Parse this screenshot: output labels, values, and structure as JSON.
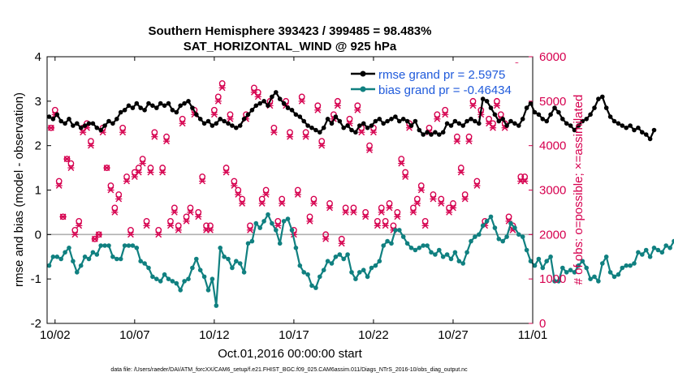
{
  "chart_data": {
    "type": "line",
    "title": "Southern Hemisphere 393423 / 399485 = 98.483%",
    "subtitle": "SAT_HORIZONTAL_WIND @ 925 hPa",
    "xlabel": "Oct.01,2016 00:00:00 start",
    "ylabel_left": "rmse and bias (model - observation)",
    "ylabel_right": "# of obs: o=possible; ×=assimilated",
    "footnote": "data file: /Users/raeder/DAI/ATM_forcXX/CAM6_setup/f.e21.FHIST_BGC.f09_025.CAM6assim.011/Diags_NTrS_2016-10/obs_diag_output.nc",
    "xlim": [
      1.5,
      32.0
    ],
    "ylim_left": [
      -2,
      4
    ],
    "ylim_right": [
      0,
      6000
    ],
    "x_ticks": [
      2,
      7,
      12,
      17,
      22,
      27,
      32
    ],
    "x_tick_labels": [
      "10/02",
      "10/07",
      "10/12",
      "10/17",
      "10/22",
      "10/27",
      "11/01"
    ],
    "y_ticks_left": [
      -2,
      -1,
      0,
      1,
      2,
      3,
      4
    ],
    "y_tick_labels_left": [
      "-2",
      "-1",
      "0",
      "1",
      "2",
      "3",
      "4"
    ],
    "y_ticks_right": [
      0,
      1000,
      2000,
      3000,
      4000,
      5000,
      6000
    ],
    "y_tick_labels_right": [
      "0",
      "1000",
      "2000",
      "3000",
      "4000",
      "5000",
      "6000"
    ],
    "x_start": 1.625,
    "x_step": 0.25,
    "legend_position": "top-right",
    "colors": {
      "rmse": "#000000",
      "bias": "#108080",
      "obs": "#d6004f",
      "zero_line": "#b0b0b0",
      "legend_text": "#1f5adb"
    },
    "series": [
      {
        "name": "rmse grand pr = 2.5975",
        "axis": "left",
        "values": [
          2.65,
          2.6,
          2.7,
          2.55,
          2.5,
          2.6,
          2.45,
          2.5,
          2.4,
          2.45,
          2.5,
          2.5,
          2.4,
          2.35,
          2.45,
          2.55,
          2.5,
          2.6,
          2.75,
          2.8,
          2.9,
          2.85,
          2.95,
          2.85,
          2.8,
          2.95,
          2.9,
          2.85,
          2.95,
          2.9,
          2.95,
          2.8,
          2.75,
          2.9,
          2.95,
          3.0,
          2.85,
          2.7,
          2.6,
          2.5,
          2.55,
          2.45,
          2.5,
          2.6,
          2.55,
          2.5,
          2.45,
          2.4,
          2.45,
          2.6,
          2.7,
          2.8,
          2.9,
          2.95,
          3.0,
          2.9,
          3.1,
          3.2,
          3.05,
          2.95,
          2.85,
          2.8,
          2.7,
          2.65,
          2.55,
          2.45,
          2.4,
          2.35,
          2.3,
          2.4,
          2.6,
          2.5,
          2.65,
          2.55,
          2.4,
          2.45,
          2.35,
          2.3,
          2.45,
          2.5,
          2.4,
          2.45,
          2.55,
          2.6,
          2.5,
          2.55,
          2.6,
          2.65,
          2.55,
          2.6,
          2.55,
          2.45,
          2.55,
          2.35,
          2.25,
          2.3,
          2.25,
          2.3,
          2.25,
          2.3,
          2.5,
          2.45,
          2.55,
          2.5,
          2.45,
          2.55,
          2.6,
          2.55,
          2.5,
          3.05,
          3.0,
          2.85,
          2.7,
          2.55,
          2.6,
          2.45,
          2.55,
          2.5,
          2.45,
          2.6,
          2.85,
          2.95,
          2.75,
          2.7,
          2.6,
          2.55,
          2.7,
          2.85,
          2.75,
          2.6,
          2.5,
          2.45,
          2.35,
          2.45,
          2.55,
          2.6,
          2.7,
          2.85,
          3.05,
          3.1,
          2.85,
          2.65,
          2.55,
          2.5,
          2.45,
          2.4,
          2.45,
          2.35,
          2.4,
          2.3,
          2.25,
          2.15,
          2.35
        ]
      },
      {
        "name": "bias grand pr = -0.46434",
        "axis": "left",
        "values": [
          -0.7,
          -0.5,
          -0.5,
          -0.55,
          -0.4,
          -0.3,
          -0.6,
          -0.85,
          -0.7,
          -0.5,
          -0.55,
          -0.4,
          -0.45,
          -0.25,
          -0.25,
          -0.25,
          -0.5,
          -0.55,
          -0.55,
          -0.25,
          -0.25,
          -0.25,
          -0.3,
          -0.6,
          -0.65,
          -0.75,
          -0.95,
          -1.0,
          -1.05,
          -0.9,
          -1.0,
          -1.05,
          -1.1,
          -1.25,
          -1.05,
          -1.0,
          -0.75,
          -0.55,
          -0.8,
          -0.95,
          -1.25,
          -1.0,
          -1.6,
          -0.3,
          -0.5,
          -0.55,
          -0.75,
          -0.6,
          -0.65,
          -0.85,
          -0.2,
          -0.15,
          0.25,
          0.15,
          0.3,
          0.45,
          0.25,
          0.1,
          -0.2,
          0.3,
          0.35,
          0.1,
          -0.3,
          -0.7,
          -0.85,
          -0.9,
          -1.15,
          -1.2,
          -0.95,
          -0.8,
          -0.6,
          -0.65,
          -0.5,
          -0.45,
          -0.55,
          -0.45,
          -0.85,
          -1.0,
          -0.85,
          -0.8,
          -0.95,
          -0.75,
          -0.7,
          -0.6,
          -0.25,
          -0.15,
          -0.2,
          0.1,
          0.1,
          -0.05,
          -0.2,
          -0.3,
          -0.35,
          -0.3,
          -0.25,
          -0.25,
          -0.4,
          -0.45,
          -0.35,
          -0.5,
          -0.45,
          -0.55,
          -0.4,
          -0.6,
          -0.65,
          -0.4,
          -0.15,
          -0.05,
          0.0,
          0.2,
          0.3,
          0.4,
          0.15,
          -0.1,
          -0.15,
          -0.05,
          0.25,
          0.15,
          0.0,
          -0.05,
          -0.35,
          -0.6,
          -0.7,
          -0.55,
          -0.75,
          -0.6,
          -0.5,
          -1.05,
          -1.05,
          -0.75,
          -0.85,
          -0.8,
          -0.85,
          -0.7,
          -0.6,
          -0.75,
          -1.0,
          -0.95,
          -1.05,
          -0.65,
          -0.5,
          -0.85,
          -0.95,
          -0.9,
          -0.75,
          -0.7,
          -0.7,
          -0.65,
          -0.4,
          -0.45,
          -0.35,
          -0.5,
          -0.3,
          -0.35,
          -0.4,
          -0.25,
          -0.3,
          -0.15,
          -0.2,
          -0.1,
          0.1,
          -0.1
        ]
      }
    ],
    "obs_possible": [
      {
        "x": 1.75,
        "y": 4400
      },
      {
        "x": 2.0,
        "y": 4800
      },
      {
        "x": 2.25,
        "y": 3200
      },
      {
        "x": 2.5,
        "y": 2400
      },
      {
        "x": 2.75,
        "y": 3700
      },
      {
        "x": 3.0,
        "y": 3600
      },
      {
        "x": 3.25,
        "y": 2100
      },
      {
        "x": 3.5,
        "y": 2300
      },
      {
        "x": 3.75,
        "y": 4400
      },
      {
        "x": 4.0,
        "y": 4500
      },
      {
        "x": 4.25,
        "y": 4100
      },
      {
        "x": 4.5,
        "y": 1900
      },
      {
        "x": 4.75,
        "y": 2000
      },
      {
        "x": 5.0,
        "y": 4400
      },
      {
        "x": 5.25,
        "y": 3500
      },
      {
        "x": 5.5,
        "y": 3100
      },
      {
        "x": 5.75,
        "y": 2600
      },
      {
        "x": 6.0,
        "y": 2900
      },
      {
        "x": 6.25,
        "y": 4400
      },
      {
        "x": 6.5,
        "y": 3300
      },
      {
        "x": 6.75,
        "y": 2100
      },
      {
        "x": 7.0,
        "y": 3400
      },
      {
        "x": 7.25,
        "y": 3500
      },
      {
        "x": 7.5,
        "y": 3700
      },
      {
        "x": 7.75,
        "y": 2300
      },
      {
        "x": 8.0,
        "y": 3500
      },
      {
        "x": 8.25,
        "y": 4300
      },
      {
        "x": 8.5,
        "y": 2100
      },
      {
        "x": 8.75,
        "y": 3500
      },
      {
        "x": 9.0,
        "y": 4200
      },
      {
        "x": 9.25,
        "y": 2300
      },
      {
        "x": 9.5,
        "y": 2600
      },
      {
        "x": 9.75,
        "y": 2200
      },
      {
        "x": 10.0,
        "y": 4600
      },
      {
        "x": 10.25,
        "y": 2400
      },
      {
        "x": 10.5,
        "y": 2600
      },
      {
        "x": 10.75,
        "y": 4800
      },
      {
        "x": 11.0,
        "y": 2500
      },
      {
        "x": 11.25,
        "y": 3300
      },
      {
        "x": 11.5,
        "y": 2200
      },
      {
        "x": 11.75,
        "y": 2200
      },
      {
        "x": 12.0,
        "y": 4800
      },
      {
        "x": 12.25,
        "y": 5100
      },
      {
        "x": 12.5,
        "y": 5400
      },
      {
        "x": 12.75,
        "y": 3500
      },
      {
        "x": 13.0,
        "y": 4700
      },
      {
        "x": 13.25,
        "y": 3200
      },
      {
        "x": 13.5,
        "y": 3000
      },
      {
        "x": 13.75,
        "y": 2800
      },
      {
        "x": 14.0,
        "y": 4700
      },
      {
        "x": 14.25,
        "y": 2200
      },
      {
        "x": 14.5,
        "y": 5300
      },
      {
        "x": 14.75,
        "y": 5200
      },
      {
        "x": 15.0,
        "y": 2800
      },
      {
        "x": 15.25,
        "y": 3000
      },
      {
        "x": 15.5,
        "y": 5000
      },
      {
        "x": 15.75,
        "y": 4400
      },
      {
        "x": 16.0,
        "y": 2300
      },
      {
        "x": 16.25,
        "y": 2800
      },
      {
        "x": 16.5,
        "y": 5000
      },
      {
        "x": 16.75,
        "y": 4300
      },
      {
        "x": 17.0,
        "y": 2100
      },
      {
        "x": 17.25,
        "y": 3000
      },
      {
        "x": 17.5,
        "y": 5100
      },
      {
        "x": 17.75,
        "y": 4300
      },
      {
        "x": 18.0,
        "y": 2400
      },
      {
        "x": 18.25,
        "y": 2800
      },
      {
        "x": 18.5,
        "y": 4900
      },
      {
        "x": 18.75,
        "y": 4100
      },
      {
        "x": 19.0,
        "y": 2000
      },
      {
        "x": 19.25,
        "y": 2700
      },
      {
        "x": 19.5,
        "y": 4700
      },
      {
        "x": 19.75,
        "y": 5000
      },
      {
        "x": 20.0,
        "y": 1900
      },
      {
        "x": 20.25,
        "y": 2600
      },
      {
        "x": 20.5,
        "y": 4600
      },
      {
        "x": 20.75,
        "y": 2600
      },
      {
        "x": 21.0,
        "y": 4900
      },
      {
        "x": 21.25,
        "y": 4400
      },
      {
        "x": 21.5,
        "y": 2500
      },
      {
        "x": 21.75,
        "y": 4000
      },
      {
        "x": 22.0,
        "y": 4400
      },
      {
        "x": 22.25,
        "y": 2300
      },
      {
        "x": 22.5,
        "y": 2600
      },
      {
        "x": 22.75,
        "y": 2300
      },
      {
        "x": 23.0,
        "y": 2700
      },
      {
        "x": 23.25,
        "y": 2200
      },
      {
        "x": 23.5,
        "y": 2500
      },
      {
        "x": 23.75,
        "y": 3700
      },
      {
        "x": 24.0,
        "y": 3400
      },
      {
        "x": 24.25,
        "y": 4500
      },
      {
        "x": 24.5,
        "y": 2600
      },
      {
        "x": 24.75,
        "y": 2800
      },
      {
        "x": 25.0,
        "y": 3100
      },
      {
        "x": 25.25,
        "y": 2300
      },
      {
        "x": 25.5,
        "y": 4400
      },
      {
        "x": 25.75,
        "y": 2900
      },
      {
        "x": 26.0,
        "y": 4700
      },
      {
        "x": 26.25,
        "y": 2800
      },
      {
        "x": 26.5,
        "y": 4800
      },
      {
        "x": 26.75,
        "y": 2600
      },
      {
        "x": 27.0,
        "y": 2700
      },
      {
        "x": 27.25,
        "y": 4200
      },
      {
        "x": 27.5,
        "y": 3500
      },
      {
        "x": 27.75,
        "y": 2900
      },
      {
        "x": 28.0,
        "y": 4200
      },
      {
        "x": 28.25,
        "y": 5000
      },
      {
        "x": 28.5,
        "y": 3200
      },
      {
        "x": 28.75,
        "y": 4800
      },
      {
        "x": 29.0,
        "y": 2300
      },
      {
        "x": 29.25,
        "y": 4600
      },
      {
        "x": 29.5,
        "y": 4500
      },
      {
        "x": 29.75,
        "y": 5000
      },
      {
        "x": 30.0,
        "y": 4700
      },
      {
        "x": 30.25,
        "y": 4500
      },
      {
        "x": 30.5,
        "y": 2400
      },
      {
        "x": 30.75,
        "y": 2200
      },
      {
        "x": 31.0,
        "y": 5800
      },
      {
        "x": 31.25,
        "y": 3300
      },
      {
        "x": 31.5,
        "y": 3300
      }
    ],
    "obs_assimilated": [
      {
        "x": 1.75,
        "y": 4400
      },
      {
        "x": 2.0,
        "y": 4700
      },
      {
        "x": 2.25,
        "y": 3100
      },
      {
        "x": 2.5,
        "y": 2400
      },
      {
        "x": 2.75,
        "y": 3700
      },
      {
        "x": 3.0,
        "y": 3500
      },
      {
        "x": 3.25,
        "y": 2000
      },
      {
        "x": 3.5,
        "y": 2200
      },
      {
        "x": 3.75,
        "y": 4300
      },
      {
        "x": 4.0,
        "y": 4400
      },
      {
        "x": 4.25,
        "y": 4000
      },
      {
        "x": 4.5,
        "y": 1900
      },
      {
        "x": 4.75,
        "y": 2000
      },
      {
        "x": 5.0,
        "y": 4300
      },
      {
        "x": 5.25,
        "y": 3500
      },
      {
        "x": 5.5,
        "y": 3000
      },
      {
        "x": 5.75,
        "y": 2500
      },
      {
        "x": 6.0,
        "y": 2800
      },
      {
        "x": 6.25,
        "y": 4300
      },
      {
        "x": 6.5,
        "y": 3200
      },
      {
        "x": 6.75,
        "y": 2000
      },
      {
        "x": 7.0,
        "y": 3300
      },
      {
        "x": 7.25,
        "y": 3400
      },
      {
        "x": 7.5,
        "y": 3600
      },
      {
        "x": 7.75,
        "y": 2200
      },
      {
        "x": 8.0,
        "y": 3400
      },
      {
        "x": 8.25,
        "y": 4200
      },
      {
        "x": 8.5,
        "y": 2000
      },
      {
        "x": 8.75,
        "y": 3400
      },
      {
        "x": 9.0,
        "y": 4100
      },
      {
        "x": 9.25,
        "y": 2200
      },
      {
        "x": 9.5,
        "y": 2500
      },
      {
        "x": 9.75,
        "y": 2100
      },
      {
        "x": 10.0,
        "y": 4500
      },
      {
        "x": 10.25,
        "y": 2300
      },
      {
        "x": 10.5,
        "y": 2500
      },
      {
        "x": 10.75,
        "y": 4700
      },
      {
        "x": 11.0,
        "y": 2400
      },
      {
        "x": 11.25,
        "y": 3200
      },
      {
        "x": 11.5,
        "y": 2100
      },
      {
        "x": 11.75,
        "y": 2100
      },
      {
        "x": 12.0,
        "y": 4700
      },
      {
        "x": 12.25,
        "y": 5000
      },
      {
        "x": 12.5,
        "y": 5300
      },
      {
        "x": 12.75,
        "y": 3400
      },
      {
        "x": 13.0,
        "y": 4600
      },
      {
        "x": 13.25,
        "y": 3100
      },
      {
        "x": 13.5,
        "y": 2900
      },
      {
        "x": 13.75,
        "y": 2700
      },
      {
        "x": 14.0,
        "y": 4600
      },
      {
        "x": 14.25,
        "y": 2100
      },
      {
        "x": 14.5,
        "y": 5200
      },
      {
        "x": 14.75,
        "y": 5100
      },
      {
        "x": 15.0,
        "y": 2700
      },
      {
        "x": 15.25,
        "y": 2900
      },
      {
        "x": 15.5,
        "y": 4900
      },
      {
        "x": 15.75,
        "y": 4300
      },
      {
        "x": 16.0,
        "y": 2200
      },
      {
        "x": 16.25,
        "y": 2700
      },
      {
        "x": 16.5,
        "y": 4900
      },
      {
        "x": 16.75,
        "y": 4200
      },
      {
        "x": 17.0,
        "y": 2000
      },
      {
        "x": 17.25,
        "y": 2900
      },
      {
        "x": 17.5,
        "y": 5000
      },
      {
        "x": 17.75,
        "y": 4200
      },
      {
        "x": 18.0,
        "y": 2300
      },
      {
        "x": 18.25,
        "y": 2700
      },
      {
        "x": 18.5,
        "y": 4800
      },
      {
        "x": 18.75,
        "y": 4000
      },
      {
        "x": 19.0,
        "y": 1900
      },
      {
        "x": 19.25,
        "y": 2600
      },
      {
        "x": 19.5,
        "y": 4600
      },
      {
        "x": 19.75,
        "y": 4900
      },
      {
        "x": 20.0,
        "y": 1800
      },
      {
        "x": 20.25,
        "y": 2500
      },
      {
        "x": 20.5,
        "y": 4500
      },
      {
        "x": 20.75,
        "y": 2500
      },
      {
        "x": 21.0,
        "y": 4800
      },
      {
        "x": 21.25,
        "y": 4300
      },
      {
        "x": 21.5,
        "y": 2400
      },
      {
        "x": 21.75,
        "y": 3900
      },
      {
        "x": 22.0,
        "y": 4300
      },
      {
        "x": 22.25,
        "y": 2200
      },
      {
        "x": 22.5,
        "y": 2500
      },
      {
        "x": 22.75,
        "y": 2200
      },
      {
        "x": 23.0,
        "y": 2600
      },
      {
        "x": 23.25,
        "y": 2100
      },
      {
        "x": 23.5,
        "y": 2400
      },
      {
        "x": 23.75,
        "y": 3600
      },
      {
        "x": 24.0,
        "y": 3300
      },
      {
        "x": 24.25,
        "y": 4400
      },
      {
        "x": 24.5,
        "y": 2500
      },
      {
        "x": 24.75,
        "y": 2700
      },
      {
        "x": 25.0,
        "y": 3000
      },
      {
        "x": 25.25,
        "y": 2200
      },
      {
        "x": 25.5,
        "y": 4300
      },
      {
        "x": 25.75,
        "y": 2800
      },
      {
        "x": 26.0,
        "y": 4600
      },
      {
        "x": 26.25,
        "y": 2700
      },
      {
        "x": 26.5,
        "y": 4700
      },
      {
        "x": 26.75,
        "y": 2500
      },
      {
        "x": 27.0,
        "y": 2600
      },
      {
        "x": 27.25,
        "y": 4100
      },
      {
        "x": 27.5,
        "y": 3400
      },
      {
        "x": 27.75,
        "y": 2800
      },
      {
        "x": 28.0,
        "y": 4100
      },
      {
        "x": 28.25,
        "y": 4900
      },
      {
        "x": 28.5,
        "y": 3100
      },
      {
        "x": 28.75,
        "y": 4700
      },
      {
        "x": 29.0,
        "y": 2200
      },
      {
        "x": 29.25,
        "y": 4500
      },
      {
        "x": 29.5,
        "y": 4400
      },
      {
        "x": 29.75,
        "y": 4900
      },
      {
        "x": 30.0,
        "y": 4600
      },
      {
        "x": 30.25,
        "y": 4400
      },
      {
        "x": 30.5,
        "y": 2300
      },
      {
        "x": 30.75,
        "y": 2100
      },
      {
        "x": 31.0,
        "y": 5700
      },
      {
        "x": 31.25,
        "y": 3200
      },
      {
        "x": 31.5,
        "y": 3200
      }
    ]
  }
}
